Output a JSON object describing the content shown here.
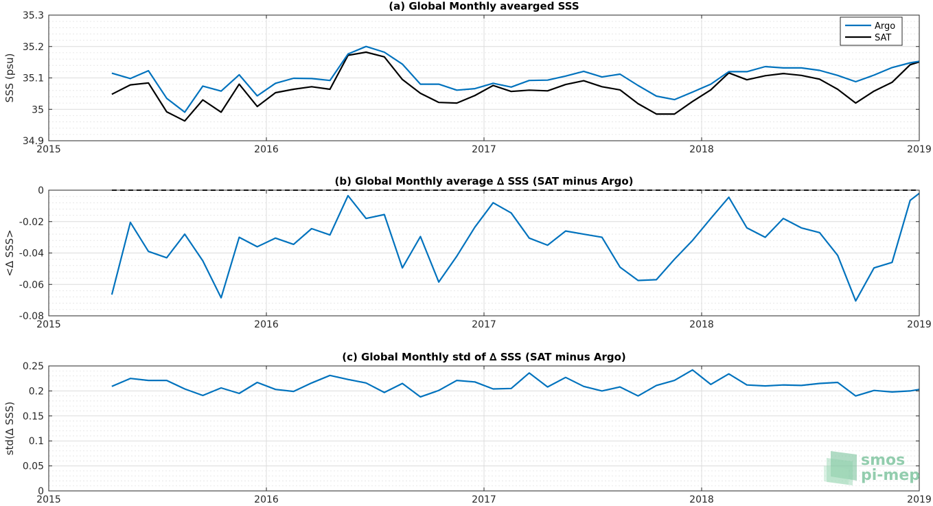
{
  "chart_data": [
    {
      "type": "line",
      "title": "(a) Global Monthly avearged SSS",
      "xlabel": "",
      "ylabel": "SSS (psu)",
      "xlim": [
        2015,
        2019
      ],
      "ylim": [
        34.9,
        35.3
      ],
      "x_ticks": [
        "2015",
        "2016",
        "2017",
        "2018",
        "2019"
      ],
      "y_ticks": [
        "34.9",
        "35",
        "35.1",
        "35.2",
        "35.3"
      ],
      "grid": true,
      "legend": "top-right",
      "x": [
        2015.29,
        2015.375,
        2015.458,
        2015.542,
        2015.625,
        2015.708,
        2015.792,
        2015.875,
        2015.958,
        2016.042,
        2016.125,
        2016.208,
        2016.292,
        2016.375,
        2016.458,
        2016.542,
        2016.625,
        2016.708,
        2016.792,
        2016.875,
        2016.958,
        2017.042,
        2017.125,
        2017.208,
        2017.292,
        2017.375,
        2017.458,
        2017.542,
        2017.625,
        2017.708,
        2017.792,
        2017.875,
        2017.958,
        2018.042,
        2018.125,
        2018.208,
        2018.292,
        2018.375,
        2018.458,
        2018.542,
        2018.625,
        2018.708,
        2018.792,
        2018.875,
        2018.958,
        2019.0
      ],
      "series": [
        {
          "name": "Argo",
          "color": "#0072bd",
          "values": [
            35.115,
            35.098,
            35.123,
            35.035,
            34.991,
            35.074,
            35.058,
            35.11,
            35.043,
            35.083,
            35.099,
            35.098,
            35.092,
            35.176,
            35.2,
            35.182,
            35.144,
            35.08,
            35.08,
            35.061,
            35.066,
            35.083,
            35.071,
            35.092,
            35.093,
            35.106,
            35.121,
            35.103,
            35.112,
            35.076,
            35.042,
            35.031,
            35.055,
            35.08,
            35.12,
            35.12,
            35.136,
            35.132,
            35.132,
            35.124,
            35.108,
            35.088,
            35.109,
            35.133,
            35.148,
            35.153
          ]
        },
        {
          "name": "SAT",
          "color": "#000000",
          "values": [
            35.048,
            35.078,
            35.084,
            34.992,
            34.963,
            35.03,
            34.991,
            35.08,
            35.009,
            35.053,
            35.064,
            35.072,
            35.064,
            35.172,
            35.182,
            35.167,
            35.095,
            35.051,
            35.022,
            35.02,
            35.044,
            35.076,
            35.057,
            35.061,
            35.059,
            35.079,
            35.091,
            35.072,
            35.062,
            35.018,
            34.985,
            34.985,
            35.025,
            35.062,
            35.116,
            35.094,
            35.107,
            35.114,
            35.108,
            35.096,
            35.064,
            35.02,
            35.058,
            35.086,
            35.142,
            35.151
          ]
        }
      ]
    },
    {
      "type": "line",
      "title": "(b) Global Monthly average ∆ SSS (SAT minus Argo)",
      "xlabel": "",
      "ylabel": "<∆ SSS>",
      "xlim": [
        2015,
        2019
      ],
      "ylim": [
        -0.08,
        0
      ],
      "x_ticks": [
        "2015",
        "2016",
        "2017",
        "2018",
        "2019"
      ],
      "y_ticks": [
        "-0.08",
        "-0.06",
        "-0.04",
        "-0.02",
        "0"
      ],
      "grid": true,
      "zero_line": {
        "value": 0,
        "style": "dashed",
        "color": "#000000"
      },
      "x": [
        2015.29,
        2015.375,
        2015.458,
        2015.542,
        2015.625,
        2015.708,
        2015.792,
        2015.875,
        2015.958,
        2016.042,
        2016.125,
        2016.208,
        2016.292,
        2016.375,
        2016.458,
        2016.542,
        2016.625,
        2016.708,
        2016.792,
        2016.875,
        2016.958,
        2017.042,
        2017.125,
        2017.208,
        2017.292,
        2017.375,
        2017.458,
        2017.542,
        2017.625,
        2017.708,
        2017.792,
        2017.875,
        2017.958,
        2018.042,
        2018.125,
        2018.208,
        2018.292,
        2018.375,
        2018.458,
        2018.542,
        2018.625,
        2018.708,
        2018.792,
        2018.875,
        2018.958,
        2019.0
      ],
      "series": [
        {
          "name": "",
          "color": "#0072bd",
          "values": [
            -0.0665,
            -0.0205,
            -0.039,
            -0.043,
            -0.028,
            -0.045,
            -0.0685,
            -0.03,
            -0.036,
            -0.0305,
            -0.0345,
            -0.0245,
            -0.0285,
            -0.0035,
            -0.018,
            -0.0155,
            -0.0495,
            -0.0295,
            -0.0585,
            -0.042,
            -0.0235,
            -0.008,
            -0.0145,
            -0.0305,
            -0.035,
            -0.026,
            -0.028,
            -0.03,
            -0.049,
            -0.0575,
            -0.057,
            -0.044,
            -0.032,
            -0.018,
            -0.0045,
            -0.024,
            -0.03,
            -0.018,
            -0.024,
            -0.027,
            -0.0415,
            -0.0705,
            -0.0495,
            -0.046,
            -0.0065,
            -0.002
          ]
        }
      ]
    },
    {
      "type": "line",
      "title": "(c) Global Monthly std of ∆ SSS (SAT minus Argo)",
      "xlabel": "",
      "ylabel": "std(∆ SSS)",
      "xlim": [
        2015,
        2019
      ],
      "ylim": [
        0,
        0.25
      ],
      "x_ticks": [
        "2015",
        "2016",
        "2017",
        "2018",
        "2019"
      ],
      "y_ticks": [
        "0",
        "0.05",
        "0.1",
        "0.15",
        "0.2",
        "0.25"
      ],
      "grid": true,
      "x": [
        2015.29,
        2015.375,
        2015.458,
        2015.542,
        2015.625,
        2015.708,
        2015.792,
        2015.875,
        2015.958,
        2016.042,
        2016.125,
        2016.208,
        2016.292,
        2016.375,
        2016.458,
        2016.542,
        2016.625,
        2016.708,
        2016.792,
        2016.875,
        2016.958,
        2017.042,
        2017.125,
        2017.208,
        2017.292,
        2017.375,
        2017.458,
        2017.542,
        2017.625,
        2017.708,
        2017.792,
        2017.875,
        2017.958,
        2018.042,
        2018.125,
        2018.208,
        2018.292,
        2018.375,
        2018.458,
        2018.542,
        2018.625,
        2018.708,
        2018.792,
        2018.875,
        2018.958,
        2019.0
      ],
      "series": [
        {
          "name": "",
          "color": "#0072bd",
          "values": [
            0.209,
            0.225,
            0.221,
            0.221,
            0.204,
            0.191,
            0.206,
            0.195,
            0.217,
            0.203,
            0.199,
            0.216,
            0.231,
            0.223,
            0.216,
            0.197,
            0.215,
            0.188,
            0.201,
            0.221,
            0.218,
            0.204,
            0.205,
            0.236,
            0.208,
            0.227,
            0.209,
            0.2,
            0.208,
            0.19,
            0.211,
            0.221,
            0.242,
            0.213,
            0.234,
            0.212,
            0.21,
            0.212,
            0.211,
            0.215,
            0.217,
            0.19,
            0.201,
            0.198,
            0.2,
            0.203
          ]
        }
      ]
    }
  ],
  "logo": {
    "line1": "smos",
    "line2": "pi-mep",
    "color": "#6fbd94"
  }
}
